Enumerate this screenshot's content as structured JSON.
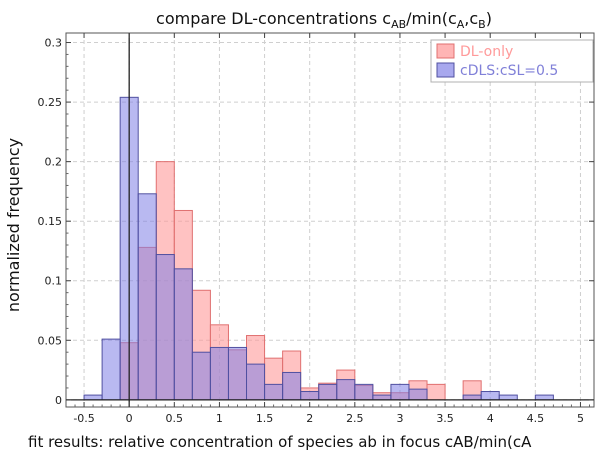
{
  "chart_data": {
    "type": "bar",
    "title_main": "compare DL-concentrations c",
    "title_sub1": "AB",
    "title_mid": "/min(c",
    "title_sub2": "A",
    "title_comma": ",c",
    "title_sub3": "B",
    "title_end": ")",
    "xlabel": "fit results: relative concentration of species ab in focus cAB/min(cA",
    "ylabel": "normalized frequency",
    "xlim": [
      -0.7,
      5.15
    ],
    "ylim": [
      -0.006,
      0.308
    ],
    "grid": true,
    "legend_position": "top-right",
    "x_ticks": [
      {
        "value": -0.5,
        "label": "-0.5"
      },
      {
        "value": 0,
        "label": "0"
      },
      {
        "value": 0.5,
        "label": "0.5"
      },
      {
        "value": 1,
        "label": "1"
      },
      {
        "value": 1.5,
        "label": "1.5"
      },
      {
        "value": 2,
        "label": "2"
      },
      {
        "value": 2.5,
        "label": "2.5"
      },
      {
        "value": 3,
        "label": "3"
      },
      {
        "value": 3.5,
        "label": "3.5"
      },
      {
        "value": 4,
        "label": "4"
      },
      {
        "value": 4.5,
        "label": "4.5"
      },
      {
        "value": 5,
        "label": "5"
      }
    ],
    "y_ticks": [
      {
        "value": 0,
        "label": "0"
      },
      {
        "value": 0.05,
        "label": "0.05"
      },
      {
        "value": 0.1,
        "label": "0.1"
      },
      {
        "value": 0.15,
        "label": "0.15"
      },
      {
        "value": 0.2,
        "label": "0.2"
      },
      {
        "value": 0.25,
        "label": "0.25"
      },
      {
        "value": 0.3,
        "label": "0.3"
      }
    ],
    "bin_edges": [
      -0.5,
      -0.3,
      -0.1,
      0.1,
      0.3,
      0.5,
      0.7,
      0.9,
      1.1,
      1.3,
      1.5,
      1.7,
      1.9,
      2.1,
      2.3,
      2.5,
      2.7,
      2.9,
      3.1,
      3.3,
      3.5,
      3.7,
      3.9,
      4.1,
      4.3,
      4.5,
      4.7,
      4.9
    ],
    "series": [
      {
        "name": "DL-only",
        "fill": "#ff9a9a",
        "fill_opacity": 0.6,
        "stroke": "#e07070",
        "values": [
          0,
          0,
          0.048,
          0.128,
          0.2,
          0.159,
          0.092,
          0.063,
          0.042,
          0.054,
          0.035,
          0.041,
          0.01,
          0.014,
          0.025,
          0.012,
          0.006,
          0.006,
          0.016,
          0.013,
          0,
          0.016,
          0,
          0,
          0,
          0,
          0
        ]
      },
      {
        "name": "cDLS:cSL=0.5",
        "fill": "#8080e6",
        "fill_opacity": 0.55,
        "stroke": "#5050a0",
        "values": [
          0.004,
          0.051,
          0.254,
          0.173,
          0.122,
          0.11,
          0.04,
          0.044,
          0.044,
          0.03,
          0.013,
          0.023,
          0.007,
          0.013,
          0.017,
          0.013,
          0.004,
          0.013,
          0.009,
          0,
          0,
          0.004,
          0.007,
          0.004,
          0,
          0.004,
          0
        ]
      }
    ]
  }
}
